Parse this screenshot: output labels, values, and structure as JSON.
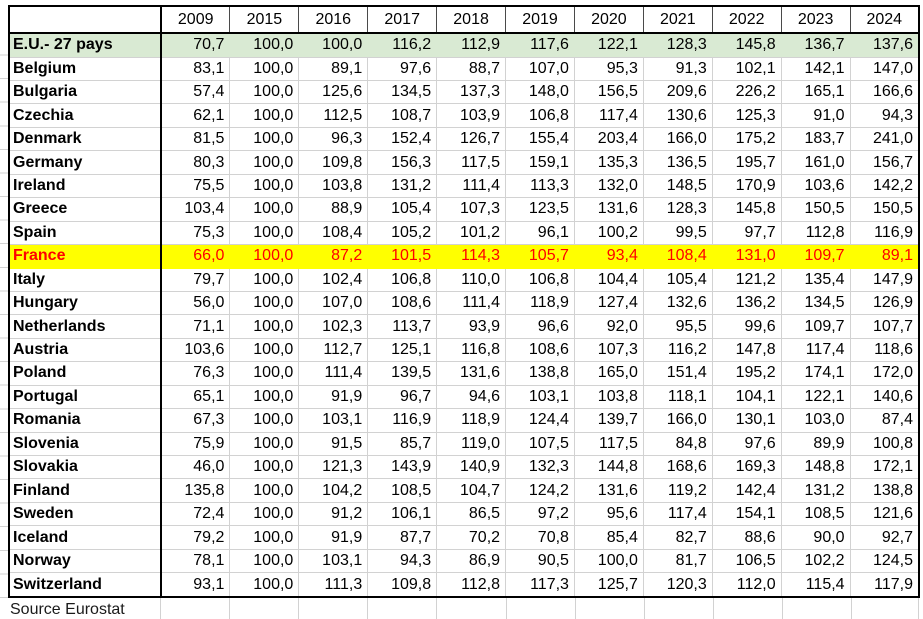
{
  "colors": {
    "eu_row_bg": "#d9ead3",
    "france_row_bg": "#ffff00",
    "france_text": "#ff0000",
    "gridline": "#d2d2d2",
    "table_border": "#000000"
  },
  "chart_data": {
    "type": "table",
    "title": "",
    "corner_label": "",
    "columns": [
      "2009",
      "2015",
      "2016",
      "2017",
      "2018",
      "2019",
      "2020",
      "2021",
      "2022",
      "2023",
      "2024"
    ],
    "decimal_separator": ",",
    "rows": [
      {
        "label": "E.U.- 27 pays",
        "highlight": "eu",
        "values": [
          70.7,
          100.0,
          100.0,
          116.2,
          112.9,
          117.6,
          122.1,
          128.3,
          145.8,
          136.7,
          137.6
        ]
      },
      {
        "label": "Belgium",
        "highlight": "",
        "values": [
          83.1,
          100.0,
          89.1,
          97.6,
          88.7,
          107.0,
          95.3,
          91.3,
          102.1,
          142.1,
          147.0
        ]
      },
      {
        "label": "Bulgaria",
        "highlight": "",
        "values": [
          57.4,
          100.0,
          125.6,
          134.5,
          137.3,
          148.0,
          156.5,
          209.6,
          226.2,
          165.1,
          166.6
        ]
      },
      {
        "label": "Czechia",
        "highlight": "",
        "values": [
          62.1,
          100.0,
          112.5,
          108.7,
          103.9,
          106.8,
          117.4,
          130.6,
          125.3,
          91.0,
          94.3
        ]
      },
      {
        "label": "Denmark",
        "highlight": "",
        "values": [
          81.5,
          100.0,
          96.3,
          152.4,
          126.7,
          155.4,
          203.4,
          166.0,
          175.2,
          183.7,
          241.0
        ]
      },
      {
        "label": "Germany",
        "highlight": "",
        "values": [
          80.3,
          100.0,
          109.8,
          156.3,
          117.5,
          159.1,
          135.3,
          136.5,
          195.7,
          161.0,
          156.7
        ]
      },
      {
        "label": "Ireland",
        "highlight": "",
        "values": [
          75.5,
          100.0,
          103.8,
          131.2,
          111.4,
          113.3,
          132.0,
          148.5,
          170.9,
          103.6,
          142.2
        ]
      },
      {
        "label": "Greece",
        "highlight": "",
        "values": [
          103.4,
          100.0,
          88.9,
          105.4,
          107.3,
          123.5,
          131.6,
          128.3,
          145.8,
          150.5,
          150.5
        ]
      },
      {
        "label": "Spain",
        "highlight": "",
        "values": [
          75.3,
          100.0,
          108.4,
          105.2,
          101.2,
          96.1,
          100.2,
          99.5,
          97.7,
          112.8,
          116.9
        ]
      },
      {
        "label": "France",
        "highlight": "france",
        "values": [
          66.0,
          100.0,
          87.2,
          101.5,
          114.3,
          105.7,
          93.4,
          108.4,
          131.0,
          109.7,
          89.1
        ]
      },
      {
        "label": "Italy",
        "highlight": "",
        "values": [
          79.7,
          100.0,
          102.4,
          106.8,
          110.0,
          106.8,
          104.4,
          105.4,
          121.2,
          135.4,
          147.9
        ]
      },
      {
        "label": "Hungary",
        "highlight": "",
        "values": [
          56.0,
          100.0,
          107.0,
          108.6,
          111.4,
          118.9,
          127.4,
          132.6,
          136.2,
          134.5,
          126.9
        ]
      },
      {
        "label": "Netherlands",
        "highlight": "",
        "values": [
          71.1,
          100.0,
          102.3,
          113.7,
          93.9,
          96.6,
          92.0,
          95.5,
          99.6,
          109.7,
          107.7
        ]
      },
      {
        "label": "Austria",
        "highlight": "",
        "values": [
          103.6,
          100.0,
          112.7,
          125.1,
          116.8,
          108.6,
          107.3,
          116.2,
          147.8,
          117.4,
          118.6
        ]
      },
      {
        "label": "Poland",
        "highlight": "",
        "values": [
          76.3,
          100.0,
          111.4,
          139.5,
          131.6,
          138.8,
          165.0,
          151.4,
          195.2,
          174.1,
          172.0
        ]
      },
      {
        "label": "Portugal",
        "highlight": "",
        "values": [
          65.1,
          100.0,
          91.9,
          96.7,
          94.6,
          103.1,
          103.8,
          118.1,
          104.1,
          122.1,
          140.6
        ]
      },
      {
        "label": "Romania",
        "highlight": "",
        "values": [
          67.3,
          100.0,
          103.1,
          116.9,
          118.9,
          124.4,
          139.7,
          166.0,
          130.1,
          103.0,
          87.4
        ]
      },
      {
        "label": "Slovenia",
        "highlight": "",
        "values": [
          75.9,
          100.0,
          91.5,
          85.7,
          119.0,
          107.5,
          117.5,
          84.8,
          97.6,
          89.9,
          100.8
        ]
      },
      {
        "label": "Slovakia",
        "highlight": "",
        "values": [
          46.0,
          100.0,
          121.3,
          143.9,
          140.9,
          132.3,
          144.8,
          168.6,
          169.3,
          148.8,
          172.1
        ]
      },
      {
        "label": "Finland",
        "highlight": "",
        "values": [
          135.8,
          100.0,
          104.2,
          108.5,
          104.7,
          124.2,
          131.6,
          119.2,
          142.4,
          131.2,
          138.8
        ]
      },
      {
        "label": "Sweden",
        "highlight": "",
        "values": [
          72.4,
          100.0,
          91.2,
          106.1,
          86.5,
          97.2,
          95.6,
          117.4,
          154.1,
          108.5,
          121.6
        ]
      },
      {
        "label": "Iceland",
        "highlight": "",
        "values": [
          79.2,
          100.0,
          91.9,
          87.7,
          70.2,
          70.8,
          85.4,
          82.7,
          88.6,
          90.0,
          92.7
        ]
      },
      {
        "label": "Norway",
        "highlight": "",
        "values": [
          78.1,
          100.0,
          103.1,
          94.3,
          86.9,
          90.5,
          100.0,
          81.7,
          106.5,
          102.2,
          124.5
        ]
      },
      {
        "label": "Switzerland",
        "highlight": "",
        "values": [
          93.1,
          100.0,
          111.3,
          109.8,
          112.8,
          117.3,
          125.7,
          120.3,
          112.0,
          115.4,
          117.9
        ]
      }
    ],
    "source": "Source Eurostat"
  }
}
